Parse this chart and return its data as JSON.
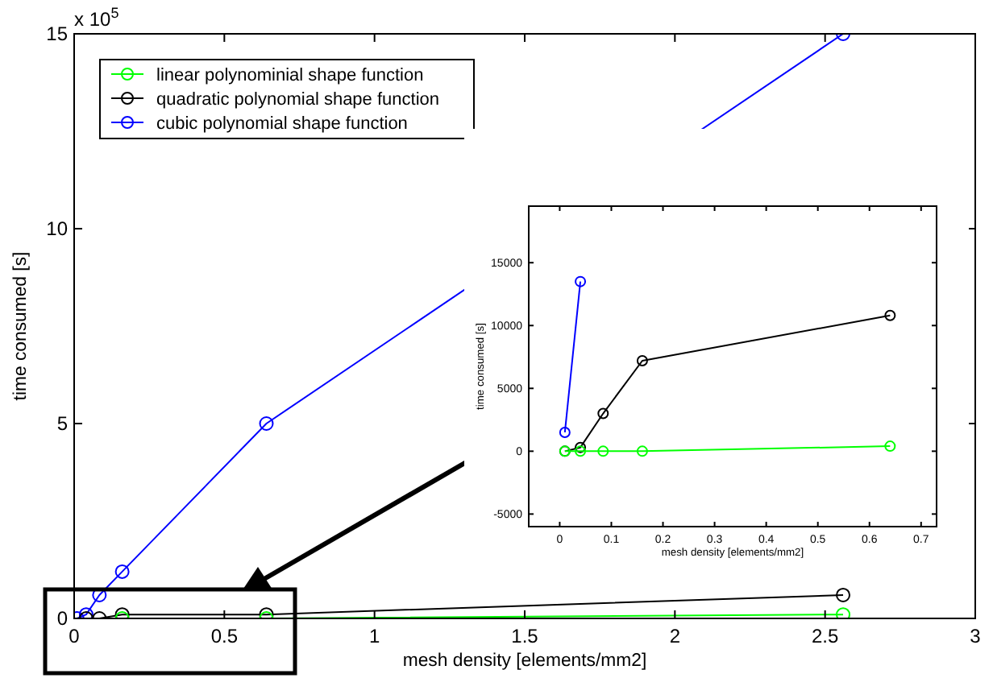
{
  "chart_data": [
    {
      "type": "line",
      "xlabel": "mesh density [elements/mm2]",
      "ylabel": "time consumed [s]",
      "annotations": [
        "x 10$^{5}$"
      ],
      "xlim": [
        0,
        3
      ],
      "xticks": [
        0,
        0.5,
        1,
        1.5,
        2,
        2.5,
        3
      ],
      "ylim": [
        0,
        15
      ],
      "yticks": [
        0,
        5,
        10,
        15
      ],
      "x": [
        0.01,
        0.04,
        0.0841,
        0.16,
        0.64,
        2.56
      ],
      "marker": "circle",
      "line_style": "solid",
      "grid": false,
      "legend": "top left",
      "series": [
        {
          "name": "linear polynominial shape function",
          "color": "#00ff00",
          "values": [
            null,
            null,
            null,
            0,
            0,
            0.1
          ]
        },
        {
          "name": "quadratic polynomial shape function",
          "color": "#000000",
          "values": [
            null,
            0,
            0,
            0.1,
            0.1,
            0.6
          ]
        },
        {
          "name": "cubic polynomial shape function",
          "color": "#0000ff",
          "values": [
            0,
            0.1,
            0.6,
            1.2,
            5,
            15
          ]
        }
      ]
    },
    {
      "type": "line",
      "xlabel": "mesh density [elements/mm2]",
      "ylabel": "time consumed [s]",
      "xlim": [
        -0.06,
        0.73
      ],
      "xticks": [
        0,
        0.1,
        0.2,
        0.3,
        0.4,
        0.5,
        0.6,
        0.7
      ],
      "ylim": [
        -6000,
        19500
      ],
      "yticks": [
        -5000,
        0,
        5000,
        10000,
        15000
      ],
      "marker": "circle",
      "line_style": "solid",
      "grid": false,
      "legend": false,
      "series": [
        {
          "color": "#00ff00",
          "x": [
            0.01,
            0.04,
            0.0841,
            0.16,
            0.64
          ],
          "values": [
            0,
            0,
            0,
            0,
            400
          ]
        },
        {
          "color": "#000000",
          "x": [
            0.01,
            0.04,
            0.0841,
            0.16,
            0.64
          ],
          "values": [
            0,
            300,
            3000,
            7200,
            10800
          ]
        },
        {
          "color": "#0000ff",
          "x": [
            0.01,
            0.04
          ],
          "values": [
            1500,
            13500
          ]
        }
      ]
    }
  ]
}
